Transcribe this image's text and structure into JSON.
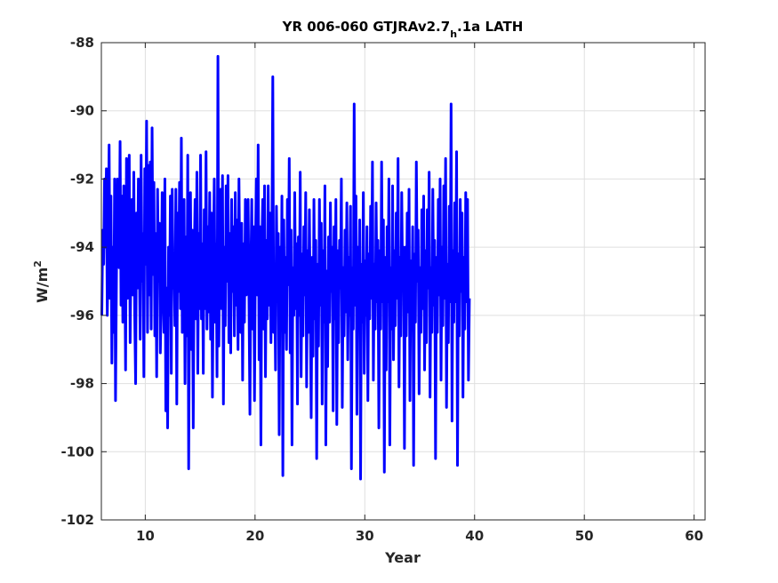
{
  "chart_data": {
    "type": "line",
    "title_main": "YR 006-060 GTJRAv2.7",
    "title_subscript": "h",
    "title_tail": ".1a LATH",
    "xlabel": "Year",
    "ylabel_base": "W/m",
    "ylabel_sup": "2",
    "xlim": [
      6,
      61
    ],
    "ylim": [
      -102,
      -88
    ],
    "xticks": [
      10,
      20,
      30,
      40,
      50,
      60
    ],
    "yticks": [
      -102,
      -100,
      -98,
      -96,
      -94,
      -92,
      -90,
      -88
    ],
    "grid": true,
    "line_color": "#0000ff",
    "series": [
      {
        "x_start": 6.04,
        "x_step": 0.0833,
        "values": [
          -96.0,
          -93.5,
          -94.5,
          -92.0,
          -94.0,
          -91.7,
          -96.0,
          -94.2,
          -91.0,
          -95.5,
          -92.5,
          -97.4,
          -94.0,
          -96.5,
          -92.0,
          -98.5,
          -95.0,
          -92.0,
          -93.2,
          -94.6,
          -90.9,
          -95.7,
          -92.5,
          -96.2,
          -92.2,
          -93.8,
          -97.6,
          -91.4,
          -95.5,
          -93.0,
          -91.3,
          -96.8,
          -94.0,
          -92.6,
          -95.4,
          -91.8,
          -96.0,
          -98.0,
          -93.0,
          -95.2,
          -92.0,
          -94.5,
          -96.7,
          -91.3,
          -95.0,
          -93.6,
          -97.8,
          -91.7,
          -94.5,
          -90.3,
          -96.5,
          -91.6,
          -95.4,
          -91.5,
          -96.4,
          -90.5,
          -94.8,
          -92.1,
          -96.6,
          -93.6,
          -97.8,
          -92.3,
          -95.0,
          -93.3,
          -97.1,
          -95.6,
          -92.4,
          -94.6,
          -96.5,
          -92.0,
          -98.8,
          -95.2,
          -99.3,
          -94.0,
          -96.0,
          -92.5,
          -97.7,
          -92.3,
          -95.2,
          -94.4,
          -96.3,
          -92.3,
          -98.6,
          -93.0,
          -95.3,
          -92.1,
          -95.8,
          -90.8,
          -96.5,
          -94.8,
          -92.6,
          -98.0,
          -93.7,
          -96.6,
          -91.3,
          -100.5,
          -94.8,
          -92.4,
          -97.0,
          -93.5,
          -99.3,
          -94.4,
          -92.6,
          -96.1,
          -91.8,
          -97.7,
          -93.6,
          -95.8,
          -91.3,
          -96.1,
          -93.9,
          -97.7,
          -92.9,
          -95.8,
          -91.2,
          -96.4,
          -93.4,
          -95.9,
          -92.4,
          -96.7,
          -93.0,
          -98.4,
          -94.4,
          -92.0,
          -96.2,
          -93.9,
          -97.8,
          -88.4,
          -96.9,
          -94.2,
          -92.3,
          -95.8,
          -91.9,
          -98.6,
          -94.0,
          -96.3,
          -92.2,
          -95.0,
          -91.9,
          -96.8,
          -93.6,
          -97.1,
          -92.6,
          -95.3,
          -93.4,
          -96.6,
          -92.4,
          -95.7,
          -93.2,
          -97.0,
          -92.0,
          -94.9,
          -96.5,
          -93.3,
          -97.9,
          -93.9,
          -96.2,
          -92.6,
          -95.4,
          -94.3,
          -92.6,
          -95.7,
          -98.9,
          -94.6,
          -92.6,
          -96.4,
          -93.4,
          -98.5,
          -94.0,
          -92.0,
          -95.4,
          -91.0,
          -97.3,
          -93.4,
          -99.8,
          -94.0,
          -92.6,
          -96.4,
          -92.2,
          -97.8,
          -93.8,
          -96.1,
          -92.2,
          -95.7,
          -93.0,
          -96.8,
          -94.0,
          -89.0,
          -96.5,
          -94.8,
          -97.6,
          -92.8,
          -95.6,
          -93.6,
          -99.5,
          -94.0,
          -96.2,
          -92.5,
          -100.7,
          -93.2,
          -96.5,
          -94.3,
          -97.0,
          -92.6,
          -95.1,
          -91.4,
          -97.1,
          -93.5,
          -99.8,
          -94.6,
          -96.0,
          -92.4,
          -95.8,
          -93.9,
          -98.6,
          -93.7,
          -96.0,
          -91.8,
          -97.8,
          -94.2,
          -96.6,
          -93.4,
          -95.4,
          -92.4,
          -98.1,
          -94.1,
          -96.5,
          -92.9,
          -95.8,
          -99.0,
          -94.3,
          -97.2,
          -92.6,
          -96.1,
          -93.8,
          -100.2,
          -94.5,
          -96.9,
          -92.6,
          -95.7,
          -93.3,
          -98.6,
          -94.1,
          -96.2,
          -92.2,
          -99.8,
          -94.7,
          -97.5,
          -93.7,
          -96.2,
          -92.7,
          -95.3,
          -94.0,
          -98.8,
          -93.4,
          -96.1,
          -92.6,
          -99.2,
          -94.1,
          -96.8,
          -93.8,
          -95.2,
          -92.0,
          -98.7,
          -94.6,
          -96.6,
          -93.5,
          -95.9,
          -92.7,
          -97.3,
          -94.3,
          -96.0,
          -92.8,
          -100.5,
          -94.6,
          -96.4,
          -89.8,
          -95.7,
          -92.5,
          -98.9,
          -94.0,
          -96.3,
          -93.2,
          -100.8,
          -94.5,
          -96.2,
          -92.4,
          -97.7,
          -94.4,
          -96.0,
          -93.4,
          -98.5,
          -94.2,
          -96.1,
          -92.8,
          -95.5,
          -91.5,
          -97.9,
          -94.5,
          -96.4,
          -92.7,
          -95.6,
          -93.8,
          -99.3,
          -94.1,
          -96.4,
          -91.5,
          -95.6,
          -93.2,
          -100.6,
          -94.3,
          -97.6,
          -93.4,
          -95.6,
          -92.0,
          -99.8,
          -94.6,
          -96.4,
          -92.2,
          -97.3,
          -94.1,
          -96.3,
          -93.0,
          -95.5,
          -91.4,
          -98.1,
          -94.3,
          -96.6,
          -92.4,
          -95.1,
          -94.0,
          -99.9,
          -94.0,
          -96.6,
          -93.0,
          -95.9,
          -92.3,
          -98.5,
          -94.4,
          -96.3,
          -93.4,
          -100.4,
          -94.2,
          -96.2,
          -91.5,
          -95.0,
          -93.5,
          -98.3,
          -94.6,
          -96.5,
          -92.9,
          -95.8,
          -92.5,
          -97.6,
          -94.1,
          -96.8,
          -92.9,
          -95.2,
          -91.8,
          -98.4,
          -94.6,
          -96.5,
          -92.3,
          -95.7,
          -93.8,
          -100.2,
          -94.3,
          -96.5,
          -92.6,
          -95.4,
          -92.0,
          -97.9,
          -94.0,
          -96.3,
          -92.2,
          -95.5,
          -91.4,
          -98.7,
          -94.5,
          -96.8,
          -92.8,
          -95.6,
          -89.8,
          -99.1,
          -94.1,
          -96.2,
          -92.7,
          -95.6,
          -91.2,
          -100.4,
          -94.2,
          -96.6,
          -92.6,
          -95.3,
          -93.0,
          -98.4,
          -94.3,
          -96.4,
          -92.4,
          -95.6,
          -92.6,
          -97.9,
          -95.5
        ]
      }
    ]
  }
}
